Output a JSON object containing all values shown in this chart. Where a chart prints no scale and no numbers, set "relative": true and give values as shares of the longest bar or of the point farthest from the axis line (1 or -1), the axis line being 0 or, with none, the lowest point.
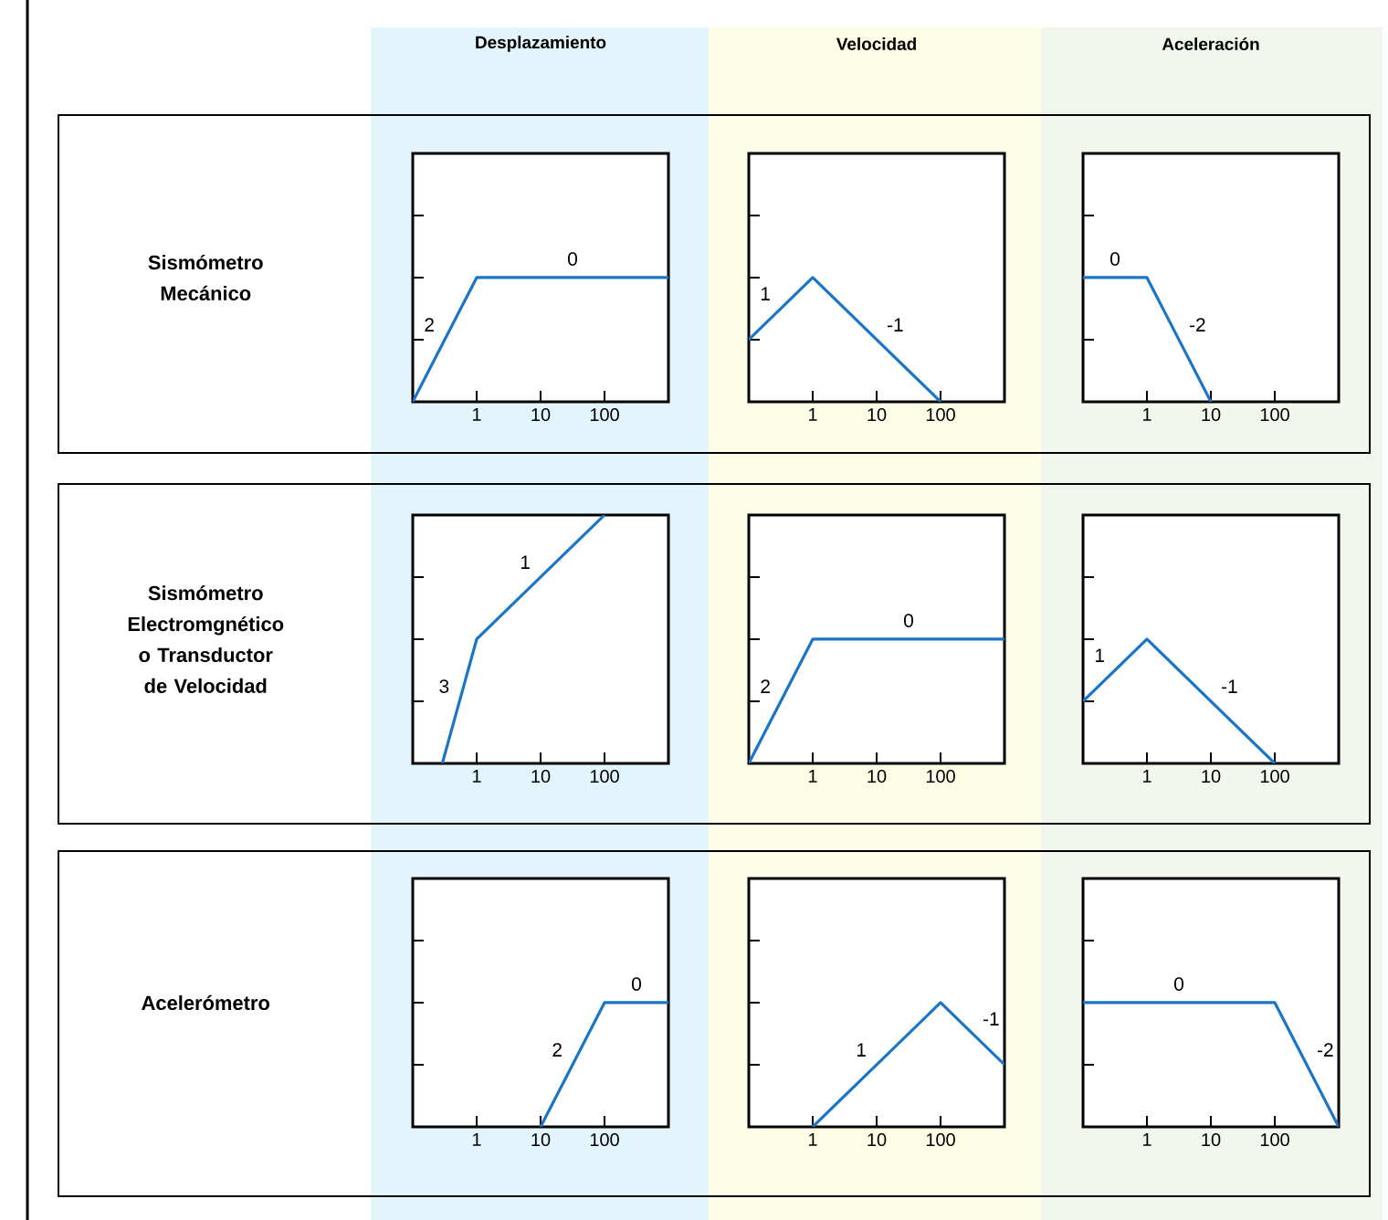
{
  "chart_data": [
    {
      "type": "line",
      "title": "Desplazamiento",
      "ylabel": "Sismómetro Mecánico",
      "relative": true,
      "log": "x",
      "xlim": [
        0.1,
        1000
      ],
      "xticks": [
        1,
        10,
        100
      ],
      "color": "#1a75c7",
      "x": [
        0.1,
        1,
        1000
      ],
      "values": [
        0,
        1,
        1
      ],
      "annotations": [
        "2",
        "0"
      ]
    },
    {
      "type": "line",
      "title": "Velocidad",
      "relative": true,
      "log": "x",
      "xlim": [
        0.1,
        1000
      ],
      "xticks": [
        1,
        10,
        100
      ],
      "color": "#1a75c7",
      "x": [
        0.1,
        1,
        100
      ],
      "values": [
        0.5,
        1,
        0
      ],
      "annotations": [
        "1",
        "-1"
      ]
    },
    {
      "type": "line",
      "title": "Aceleración",
      "relative": true,
      "log": "x",
      "xlim": [
        0.1,
        1000
      ],
      "xticks": [
        1,
        10,
        100
      ],
      "color": "#1a75c7",
      "x": [
        0.1,
        1,
        10
      ],
      "values": [
        1,
        1,
        0
      ],
      "annotations": [
        "0",
        "-2"
      ]
    },
    {
      "type": "line",
      "ylabel": "Sismómetro Electromgnético o Transductor de Velocidad",
      "relative": true,
      "log": "x",
      "xlim": [
        0.1,
        1000
      ],
      "xticks": [
        1,
        10,
        100
      ],
      "color": "#1a75c7",
      "x": [
        0.29,
        1,
        100
      ],
      "values": [
        0,
        0.5,
        1
      ],
      "annotations": [
        "3",
        "1"
      ]
    },
    {
      "type": "line",
      "relative": true,
      "log": "x",
      "xlim": [
        0.1,
        1000
      ],
      "xticks": [
        1,
        10,
        100
      ],
      "color": "#1a75c7",
      "x": [
        0.1,
        1,
        1000
      ],
      "values": [
        0,
        1,
        1
      ],
      "annotations": [
        "2",
        "0"
      ]
    },
    {
      "type": "line",
      "relative": true,
      "log": "x",
      "xlim": [
        0.1,
        1000
      ],
      "xticks": [
        1,
        10,
        100
      ],
      "color": "#1a75c7",
      "x": [
        0.1,
        1,
        100
      ],
      "values": [
        0.5,
        1,
        0
      ],
      "annotations": [
        "1",
        "-1"
      ]
    },
    {
      "type": "line",
      "ylabel": "Acelerómetro",
      "relative": true,
      "log": "x",
      "xlim": [
        0.1,
        1000
      ],
      "xticks": [
        1,
        10,
        100
      ],
      "color": "#1a75c7",
      "x": [
        10,
        100,
        1000
      ],
      "values": [
        0,
        1,
        1
      ],
      "annotations": [
        "2",
        "0"
      ]
    },
    {
      "type": "line",
      "relative": true,
      "log": "x",
      "xlim": [
        0.1,
        1000
      ],
      "xticks": [
        1,
        10,
        100
      ],
      "color": "#1a75c7",
      "x": [
        1,
        100,
        1000
      ],
      "values": [
        0,
        1,
        0.5
      ],
      "annotations": [
        "1",
        "-1"
      ]
    },
    {
      "type": "line",
      "relative": true,
      "log": "x",
      "xlim": [
        0.1,
        1000
      ],
      "xticks": [
        1,
        10,
        100
      ],
      "color": "#1a75c7",
      "x": [
        0.1,
        100,
        1000
      ],
      "values": [
        1,
        1,
        0
      ],
      "annotations": [
        "0",
        "-2"
      ]
    }
  ]
}
